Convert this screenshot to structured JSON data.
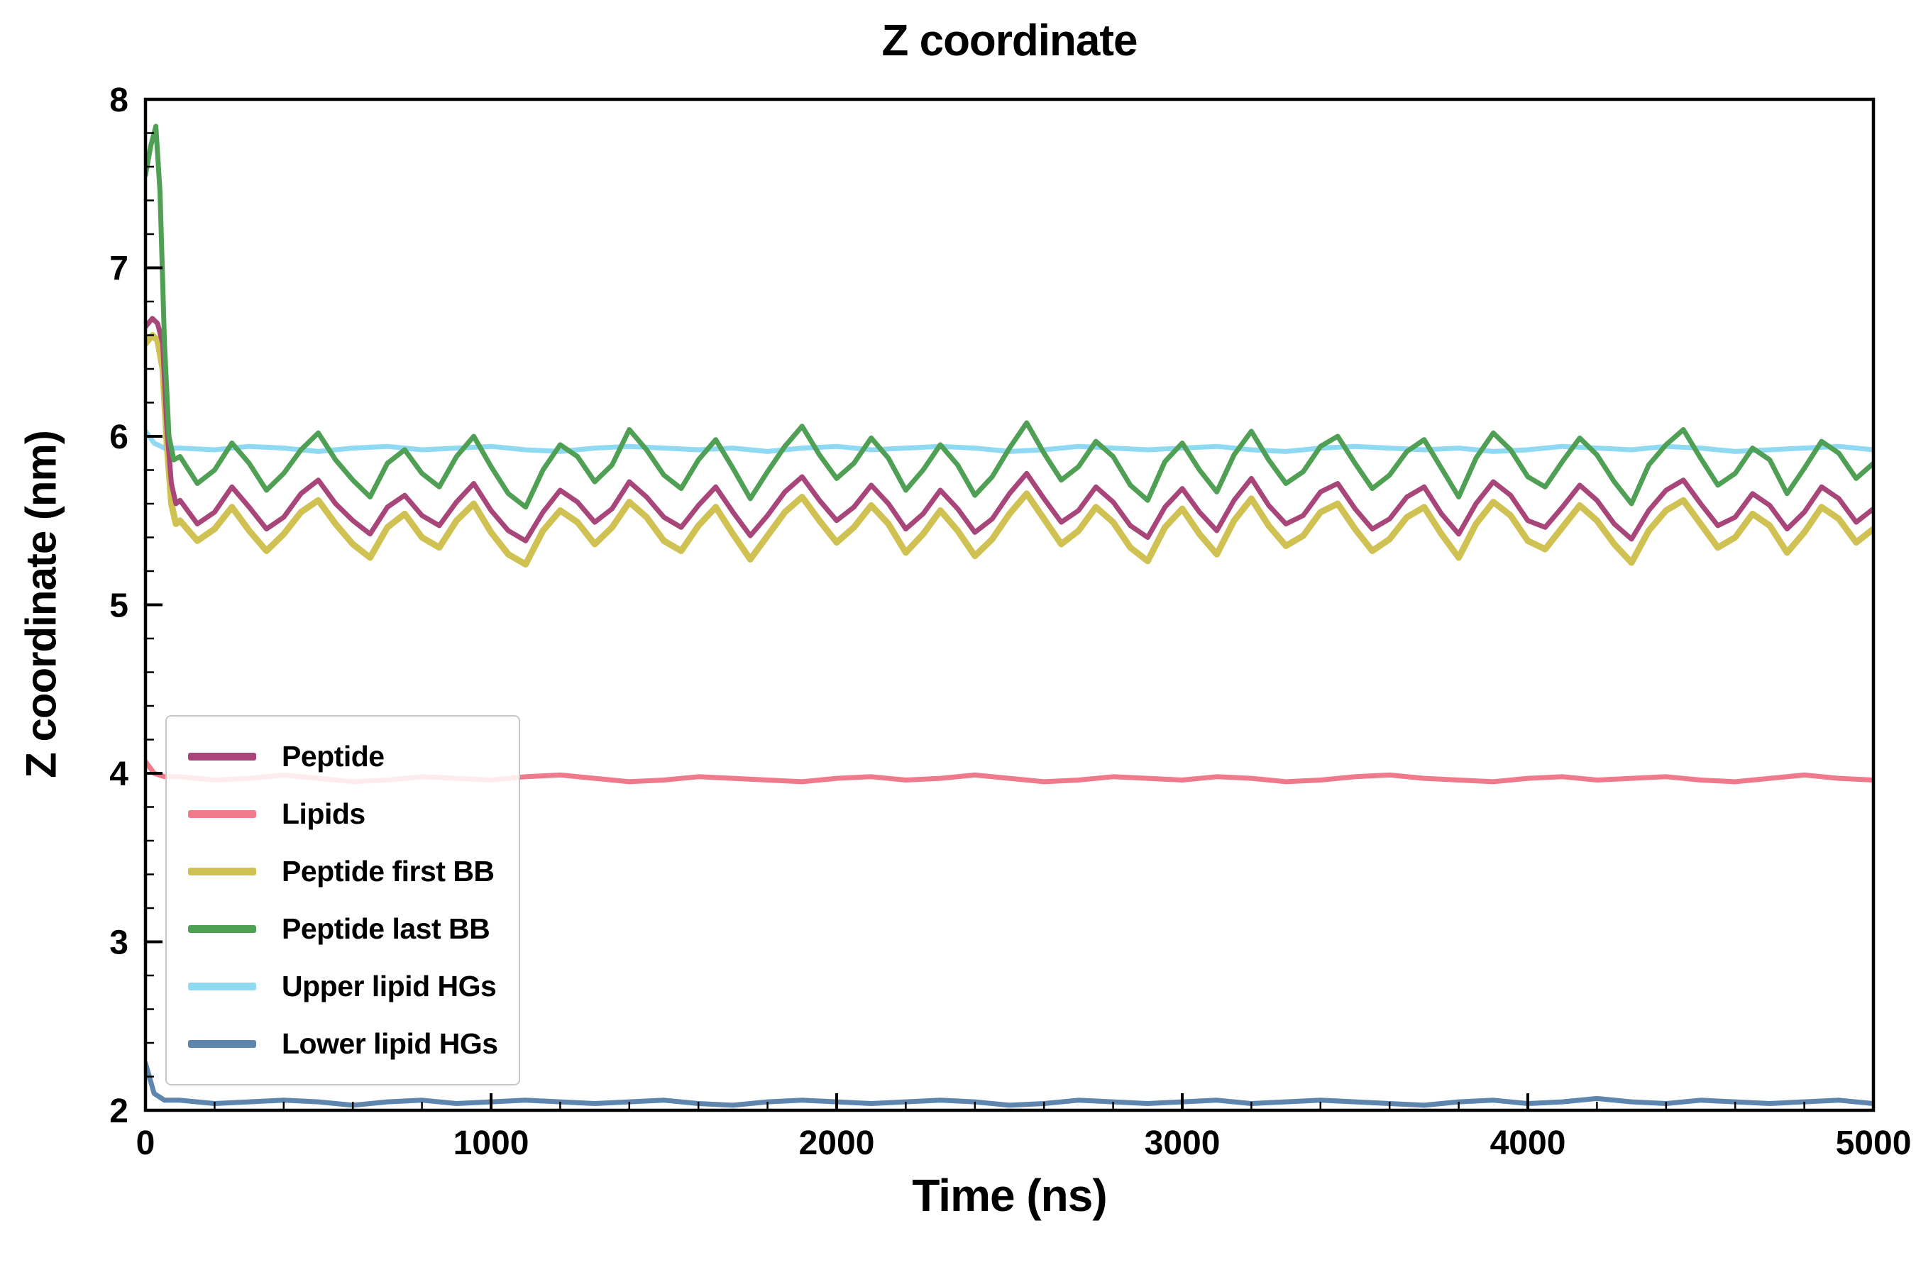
{
  "chart_data": {
    "type": "line",
    "title": "Z coordinate",
    "xlabel": "Time (ns)",
    "ylabel": "Z coordinate (nm)",
    "xlim": [
      0,
      5000
    ],
    "ylim": [
      2,
      8
    ],
    "xticks": [
      0,
      1000,
      2000,
      3000,
      4000,
      5000
    ],
    "yticks": [
      2,
      3,
      4,
      5,
      6,
      7,
      8
    ],
    "x_minor_step": 200,
    "y_minor_step": 0.2,
    "grid": false,
    "legend_position": "lower-left",
    "frame_color": "#000000",
    "series": [
      {
        "name": "Peptide",
        "color": "#a84579",
        "width": 7,
        "z": 4,
        "head": {
          "x": [
            0,
            20,
            35,
            50,
            62,
            75,
            88
          ],
          "y": [
            6.65,
            6.7,
            6.67,
            6.55,
            6.05,
            5.72,
            5.6
          ]
        },
        "x_start": 100,
        "x_step": 50,
        "y": [
          5.62,
          5.48,
          5.55,
          5.7,
          5.58,
          5.45,
          5.52,
          5.66,
          5.74,
          5.6,
          5.5,
          5.42,
          5.58,
          5.65,
          5.53,
          5.47,
          5.61,
          5.72,
          5.56,
          5.44,
          5.38,
          5.55,
          5.68,
          5.61,
          5.49,
          5.57,
          5.73,
          5.64,
          5.52,
          5.46,
          5.59,
          5.7,
          5.55,
          5.41,
          5.53,
          5.67,
          5.76,
          5.62,
          5.5,
          5.58,
          5.71,
          5.6,
          5.45,
          5.54,
          5.68,
          5.57,
          5.43,
          5.51,
          5.66,
          5.78,
          5.63,
          5.49,
          5.56,
          5.7,
          5.61,
          5.47,
          5.4,
          5.58,
          5.69,
          5.55,
          5.44,
          5.62,
          5.75,
          5.59,
          5.48,
          5.53,
          5.67,
          5.72,
          5.57,
          5.45,
          5.51,
          5.64,
          5.7,
          5.54,
          5.42,
          5.6,
          5.73,
          5.65,
          5.5,
          5.46,
          5.58,
          5.71,
          5.62,
          5.48,
          5.39,
          5.56,
          5.68,
          5.74,
          5.6,
          5.47,
          5.52,
          5.66,
          5.59,
          5.45,
          5.55,
          5.7,
          5.63,
          5.49,
          5.57
        ]
      },
      {
        "name": "Lipids",
        "color": "#ee7a8c",
        "width": 7,
        "z": 2,
        "head": {
          "x": [
            0,
            25,
            55
          ],
          "y": [
            4.07,
            4.0,
            3.98
          ]
        },
        "x_start": 100,
        "x_step": 100,
        "y": [
          3.98,
          3.96,
          3.97,
          3.99,
          3.97,
          3.95,
          3.96,
          3.98,
          3.97,
          3.96,
          3.98,
          3.99,
          3.97,
          3.95,
          3.96,
          3.98,
          3.97,
          3.96,
          3.95,
          3.97,
          3.98,
          3.96,
          3.97,
          3.99,
          3.97,
          3.95,
          3.96,
          3.98,
          3.97,
          3.96,
          3.98,
          3.97,
          3.95,
          3.96,
          3.98,
          3.99,
          3.97,
          3.96,
          3.95,
          3.97,
          3.98,
          3.96,
          3.97,
          3.98,
          3.96,
          3.95,
          3.97,
          3.99,
          3.97,
          3.96
        ]
      },
      {
        "name": "Peptide first BB",
        "color": "#cfc253",
        "width": 9,
        "z": 3,
        "head": {
          "x": [
            0,
            20,
            35,
            50,
            62,
            75,
            88
          ],
          "y": [
            6.55,
            6.6,
            6.57,
            6.4,
            5.95,
            5.6,
            5.48
          ]
        },
        "x_start": 100,
        "x_step": 50,
        "y": [
          5.5,
          5.38,
          5.45,
          5.58,
          5.44,
          5.32,
          5.42,
          5.55,
          5.62,
          5.48,
          5.36,
          5.28,
          5.46,
          5.54,
          5.4,
          5.34,
          5.5,
          5.6,
          5.43,
          5.3,
          5.24,
          5.44,
          5.56,
          5.49,
          5.36,
          5.46,
          5.61,
          5.52,
          5.38,
          5.32,
          5.47,
          5.58,
          5.42,
          5.27,
          5.41,
          5.55,
          5.64,
          5.5,
          5.37,
          5.46,
          5.59,
          5.48,
          5.31,
          5.42,
          5.56,
          5.44,
          5.29,
          5.39,
          5.54,
          5.66,
          5.51,
          5.36,
          5.44,
          5.58,
          5.49,
          5.34,
          5.26,
          5.46,
          5.57,
          5.42,
          5.3,
          5.5,
          5.63,
          5.47,
          5.35,
          5.41,
          5.55,
          5.6,
          5.45,
          5.32,
          5.39,
          5.52,
          5.58,
          5.42,
          5.28,
          5.48,
          5.61,
          5.53,
          5.38,
          5.33,
          5.46,
          5.59,
          5.5,
          5.36,
          5.25,
          5.44,
          5.56,
          5.62,
          5.48,
          5.34,
          5.4,
          5.54,
          5.47,
          5.31,
          5.43,
          5.58,
          5.51,
          5.37,
          5.45
        ]
      },
      {
        "name": "Peptide last BB",
        "color": "#4f9f55",
        "width": 7,
        "z": 5,
        "head": {
          "x": [
            0,
            15,
            30,
            42,
            55,
            68,
            82
          ],
          "y": [
            7.55,
            7.72,
            7.84,
            7.45,
            6.55,
            6.0,
            5.86
          ]
        },
        "x_start": 100,
        "x_step": 50,
        "y": [
          5.88,
          5.72,
          5.8,
          5.96,
          5.84,
          5.68,
          5.78,
          5.92,
          6.02,
          5.86,
          5.74,
          5.64,
          5.84,
          5.92,
          5.78,
          5.7,
          5.88,
          6.0,
          5.82,
          5.66,
          5.58,
          5.8,
          5.95,
          5.88,
          5.73,
          5.83,
          6.04,
          5.92,
          5.77,
          5.69,
          5.86,
          5.98,
          5.81,
          5.63,
          5.79,
          5.94,
          6.06,
          5.89,
          5.75,
          5.84,
          5.99,
          5.87,
          5.68,
          5.8,
          5.95,
          5.83,
          5.65,
          5.76,
          5.93,
          6.08,
          5.9,
          5.74,
          5.82,
          5.97,
          5.88,
          5.71,
          5.62,
          5.85,
          5.96,
          5.8,
          5.67,
          5.89,
          6.03,
          5.86,
          5.72,
          5.79,
          5.94,
          6.0,
          5.84,
          5.69,
          5.77,
          5.91,
          5.98,
          5.81,
          5.64,
          5.87,
          6.02,
          5.92,
          5.76,
          5.7,
          5.85,
          5.99,
          5.89,
          5.73,
          5.6,
          5.83,
          5.95,
          6.04,
          5.87,
          5.71,
          5.78,
          5.93,
          5.86,
          5.66,
          5.81,
          5.97,
          5.9,
          5.75,
          5.84
        ]
      },
      {
        "name": "Upper lipid HGs",
        "color": "#8fd9f2",
        "width": 7,
        "z": 0,
        "head": {
          "x": [
            0,
            25,
            55
          ],
          "y": [
            6.03,
            5.96,
            5.93
          ]
        },
        "x_start": 100,
        "x_step": 100,
        "y": [
          5.93,
          5.92,
          5.94,
          5.93,
          5.91,
          5.93,
          5.94,
          5.92,
          5.93,
          5.94,
          5.92,
          5.91,
          5.93,
          5.94,
          5.93,
          5.92,
          5.93,
          5.91,
          5.93,
          5.94,
          5.92,
          5.93,
          5.94,
          5.93,
          5.91,
          5.92,
          5.94,
          5.93,
          5.92,
          5.93,
          5.94,
          5.92,
          5.91,
          5.93,
          5.94,
          5.93,
          5.92,
          5.93,
          5.91,
          5.92,
          5.94,
          5.93,
          5.92,
          5.94,
          5.93,
          5.91,
          5.92,
          5.93,
          5.94,
          5.92
        ]
      },
      {
        "name": "Lower lipid HGs",
        "color": "#5e85ad",
        "width": 7,
        "z": 1,
        "head": {
          "x": [
            0,
            25,
            55
          ],
          "y": [
            2.28,
            2.1,
            2.06
          ]
        },
        "x_start": 100,
        "x_step": 100,
        "y": [
          2.06,
          2.04,
          2.05,
          2.06,
          2.05,
          2.03,
          2.05,
          2.06,
          2.04,
          2.05,
          2.06,
          2.05,
          2.04,
          2.05,
          2.06,
          2.04,
          2.03,
          2.05,
          2.06,
          2.05,
          2.04,
          2.05,
          2.06,
          2.05,
          2.03,
          2.04,
          2.06,
          2.05,
          2.04,
          2.05,
          2.06,
          2.04,
          2.05,
          2.06,
          2.05,
          2.04,
          2.03,
          2.05,
          2.06,
          2.04,
          2.05,
          2.07,
          2.05,
          2.04,
          2.06,
          2.05,
          2.04,
          2.05,
          2.06,
          2.04
        ]
      }
    ]
  }
}
